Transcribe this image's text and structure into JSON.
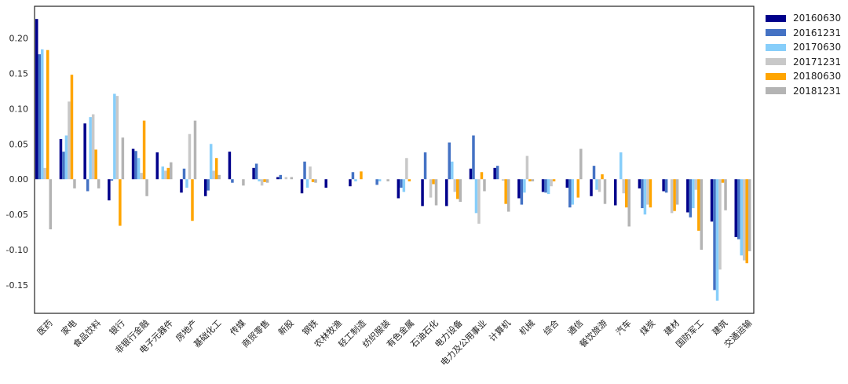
{
  "chart_data": {
    "type": "bar",
    "title": "",
    "xlabel": "",
    "ylabel": "",
    "ylim": [
      -0.19,
      0.245
    ],
    "yticks": [
      -0.15,
      -0.1,
      -0.05,
      0.0,
      0.05,
      0.1,
      0.15,
      0.2
    ],
    "ytick_labels": [
      "-0.15",
      "-0.10",
      "-0.05",
      "0.00",
      "0.05",
      "0.10",
      "0.15",
      "0.20"
    ],
    "grid": false,
    "legend_position": "right",
    "categories": [
      "医药",
      "家电",
      "食品饮料",
      "银行",
      "非银行金融",
      "电子元器件",
      "房地产",
      "基础化工",
      "传媒",
      "商贸零售",
      "新股",
      "钢铁",
      "农林牧渔",
      "轻工制造",
      "纺织服装",
      "有色金属",
      "石油石化",
      "电力设备",
      "电力及公用事业",
      "计算机",
      "机械",
      "综合",
      "通信",
      "餐饮旅游",
      "汽车",
      "煤炭",
      "建材",
      "国防军工",
      "建筑",
      "交通运输"
    ],
    "series": [
      {
        "name": "20160630",
        "color": "#00008b",
        "values": [
          0.227,
          0.057,
          0.079,
          -0.03,
          0.043,
          0.038,
          -0.019,
          -0.024,
          0.039,
          0.016,
          0.003,
          -0.02,
          -0.012,
          -0.01,
          0.0,
          -0.027,
          -0.038,
          -0.038,
          0.015,
          0.016,
          -0.027,
          -0.018,
          -0.012,
          -0.024,
          -0.037,
          -0.013,
          -0.017,
          -0.047,
          -0.06,
          -0.082
        ]
      },
      {
        "name": "20161231",
        "color": "#4472c4",
        "values": [
          0.177,
          0.039,
          -0.017,
          -0.002,
          0.04,
          0.0,
          0.015,
          -0.016,
          -0.005,
          0.022,
          0.006,
          0.025,
          0.0,
          0.01,
          -0.008,
          -0.012,
          0.038,
          0.052,
          0.062,
          0.019,
          -0.036,
          -0.019,
          -0.04,
          0.019,
          0.0,
          -0.041,
          -0.019,
          -0.054,
          -0.157,
          -0.085
        ]
      },
      {
        "name": "20170630",
        "color": "#87cefa",
        "values": [
          0.184,
          0.062,
          0.088,
          0.121,
          0.03,
          0.018,
          -0.012,
          0.05,
          0.0,
          -0.003,
          0.0,
          -0.012,
          0.0,
          -0.003,
          -0.003,
          -0.018,
          0.0,
          0.025,
          -0.048,
          0.0,
          -0.019,
          -0.021,
          -0.036,
          -0.015,
          0.038,
          -0.05,
          0.0,
          -0.041,
          -0.172,
          -0.108
        ]
      },
      {
        "name": "20171231",
        "color": "#c8c8c8",
        "values": [
          0.016,
          0.11,
          0.092,
          0.118,
          0.009,
          0.012,
          0.064,
          0.012,
          0.0,
          -0.009,
          0.003,
          0.018,
          0.0,
          0.0,
          0.0,
          0.03,
          -0.026,
          -0.018,
          -0.063,
          -0.002,
          0.033,
          -0.01,
          0.0,
          -0.018,
          -0.02,
          -0.036,
          -0.048,
          -0.015,
          -0.128,
          -0.115
        ]
      },
      {
        "name": "20180630",
        "color": "#ffa500",
        "values": [
          0.183,
          0.148,
          0.042,
          -0.066,
          0.083,
          0.016,
          -0.059,
          0.03,
          0.0,
          -0.004,
          0.0,
          -0.004,
          0.0,
          0.011,
          0.0,
          -0.003,
          -0.007,
          -0.028,
          0.01,
          -0.035,
          -0.003,
          -0.003,
          -0.026,
          0.007,
          -0.04,
          -0.04,
          -0.045,
          -0.073,
          -0.005,
          -0.119
        ]
      },
      {
        "name": "20181231",
        "color": "#b4b4b4",
        "values": [
          -0.071,
          -0.013,
          -0.013,
          0.059,
          -0.024,
          0.024,
          0.083,
          0.006,
          -0.009,
          -0.005,
          0.003,
          -0.005,
          0.0,
          0.0,
          -0.003,
          0.0,
          -0.037,
          -0.032,
          -0.017,
          -0.046,
          -0.003,
          0.0,
          0.043,
          -0.035,
          -0.067,
          0.0,
          -0.036,
          -0.1,
          -0.044,
          -0.102
        ]
      }
    ]
  }
}
